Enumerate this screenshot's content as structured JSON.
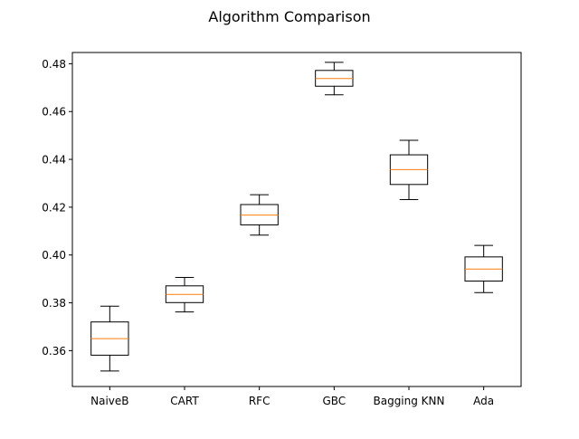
{
  "chart_data": {
    "type": "box",
    "title": "Algorithm Comparison",
    "xlabel": "",
    "ylabel": "",
    "ylim": [
      0.345,
      0.4847
    ],
    "y_ticks": [
      0.36,
      0.38,
      0.4,
      0.42,
      0.44,
      0.46,
      0.48
    ],
    "y_tick_labels": [
      "0.36",
      "0.38",
      "0.40",
      "0.42",
      "0.44",
      "0.46",
      "0.48"
    ],
    "categories": [
      "NaiveB",
      "CART",
      "RFC",
      "GBC",
      "Bagging KNN",
      "Ada"
    ],
    "boxes": [
      {
        "whisker_low": 0.3515,
        "q1": 0.3581,
        "median": 0.365,
        "q3": 0.372,
        "whisker_high": 0.3786
      },
      {
        "whisker_low": 0.3762,
        "q1": 0.3801,
        "median": 0.3835,
        "q3": 0.3871,
        "whisker_high": 0.3906
      },
      {
        "whisker_low": 0.4083,
        "q1": 0.4126,
        "median": 0.4167,
        "q3": 0.4211,
        "whisker_high": 0.4252
      },
      {
        "whisker_low": 0.467,
        "q1": 0.4706,
        "median": 0.4738,
        "q3": 0.4772,
        "whisker_high": 0.4806
      },
      {
        "whisker_low": 0.4232,
        "q1": 0.4295,
        "median": 0.4357,
        "q3": 0.4419,
        "whisker_high": 0.448
      },
      {
        "whisker_low": 0.3843,
        "q1": 0.3891,
        "median": 0.3941,
        "q3": 0.3992,
        "whisker_high": 0.404
      }
    ],
    "box_color": "#000000",
    "median_color": "#ff7f0e",
    "grid": false,
    "legend": "none"
  }
}
